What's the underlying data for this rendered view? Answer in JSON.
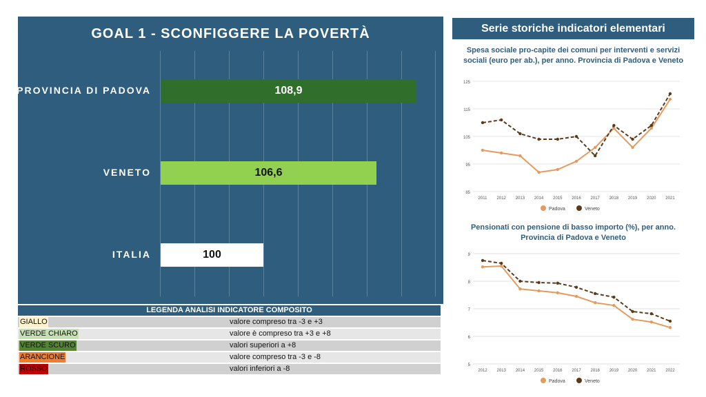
{
  "left": {
    "title": "GOAL 1 - SCONFIGGERE LA POVERTÀ",
    "rows": [
      {
        "label": "PROVINCIA DI PADOVA",
        "value_label": "108,9"
      },
      {
        "label": "VENETO",
        "value_label": "106,6"
      },
      {
        "label": "ITALIA",
        "value_label": "100"
      }
    ]
  },
  "legend": {
    "title": "LEGENDA ANALISI INDICATORE COMPOSITO",
    "items": [
      {
        "name": "GIALLO",
        "desc": "valore compreso tra -3 e +3",
        "color": "#fff2cc"
      },
      {
        "name": "VERDE CHIARO",
        "desc": "valore è compreso tra +3 e +8",
        "color": "#c6e0b4"
      },
      {
        "name": "VERDE SCURO",
        "desc": "valori superiori  a +8",
        "color": "#548235"
      },
      {
        "name": "ARANCIONE",
        "desc": "valore compreso tra -3 e -8",
        "color": "#ed7d31"
      },
      {
        "name": "ROSSO",
        "desc": "valori inferiori a -8",
        "color": "#c00000"
      }
    ]
  },
  "right": {
    "header": "Serie storiche indicatori elementari"
  },
  "chart_data": [
    {
      "type": "bar",
      "orientation": "horizontal",
      "title": "GOAL 1 - SCONFIGGERE LA POVERTÀ",
      "categories": [
        "PROVINCIA DI PADOVA",
        "VENETO",
        "ITALIA"
      ],
      "values": [
        108.9,
        106.6,
        100
      ],
      "colors": [
        "#2f6e2b",
        "#92d050",
        "#ffffff"
      ],
      "xlim": [
        94,
        110
      ]
    },
    {
      "type": "line",
      "title_lines": [
        "Spesa sociale pro-capite dei comuni per interventi e servizi",
        "sociali (euro per ab.), per anno. Provincia di Padova e Veneto"
      ],
      "x": [
        "2011",
        "2012",
        "2013",
        "2014",
        "2015",
        "2016",
        "2017",
        "2018",
        "2019",
        "2020",
        "2021"
      ],
      "ylim": [
        85,
        125
      ],
      "yticks": [
        "85",
        "95",
        "105",
        "115",
        "125"
      ],
      "series": [
        {
          "name": "Padova",
          "color": "#e59a5c",
          "style": "solid",
          "values": [
            100,
            99,
            98,
            92,
            93,
            96,
            101,
            108,
            101,
            108,
            118.5
          ]
        },
        {
          "name": "Veneto",
          "color": "#5b3a1a",
          "style": "dashed",
          "values": [
            110,
            111,
            106,
            104,
            104,
            105,
            98,
            109,
            104,
            109,
            120.5
          ]
        }
      ]
    },
    {
      "type": "line",
      "title_lines": [
        "Pensionati con pensione di basso importo (%), per anno.",
        "Provincia di Padova e Veneto"
      ],
      "x": [
        "2012",
        "2013",
        "2014",
        "2015",
        "2016",
        "2017",
        "2018",
        "2019",
        "2020",
        "2021",
        "2022"
      ],
      "ylim": [
        5,
        9
      ],
      "yticks": [
        "5",
        "6",
        "7",
        "8",
        "9"
      ],
      "series": [
        {
          "name": "Padova",
          "color": "#e59a5c",
          "style": "solid",
          "values": [
            8.52,
            8.55,
            7.72,
            7.65,
            7.58,
            7.45,
            7.22,
            7.12,
            6.62,
            6.52,
            6.32
          ]
        },
        {
          "name": "Veneto",
          "color": "#5b3a1a",
          "style": "dashed",
          "values": [
            8.75,
            8.65,
            8.0,
            7.95,
            7.93,
            7.78,
            7.55,
            7.42,
            6.9,
            6.82,
            6.55
          ]
        }
      ]
    }
  ]
}
